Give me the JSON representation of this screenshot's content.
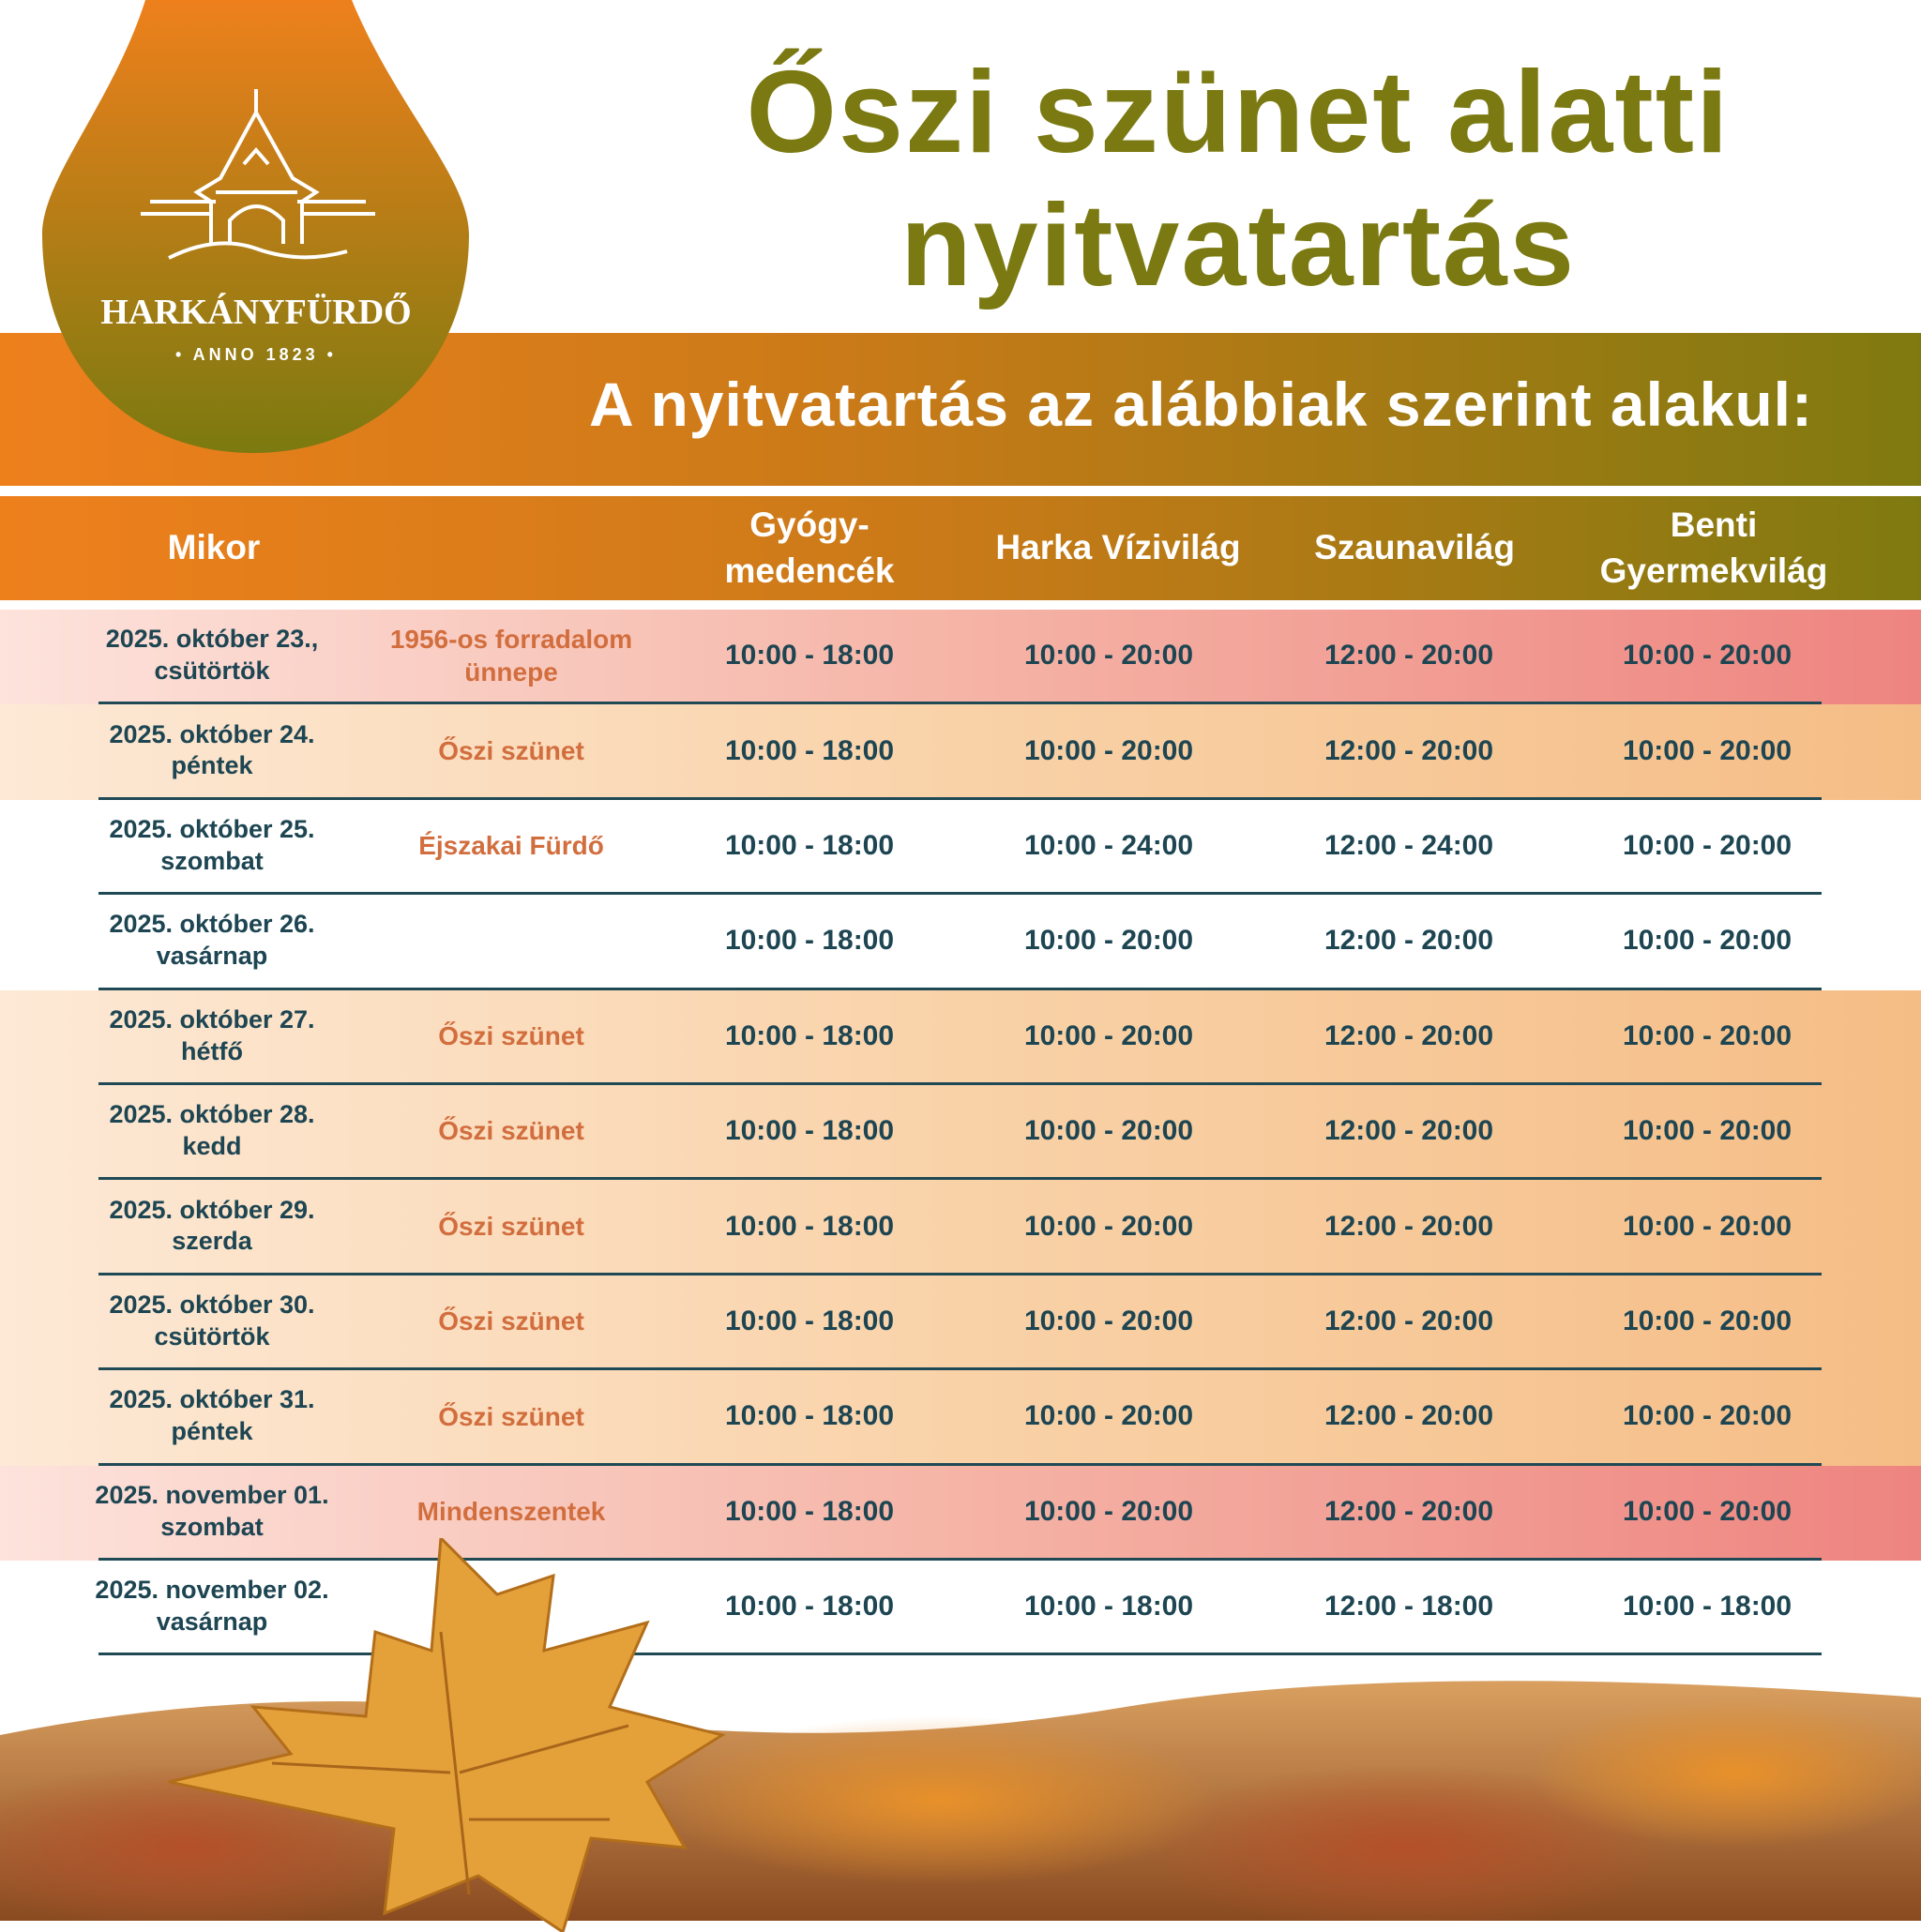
{
  "logo": {
    "brand": "HARKÁNYFÜRDŐ",
    "tagline": "• ANNO 1823 •"
  },
  "title": {
    "line1": "Őszi szünet alatti",
    "line2": "nyitvatartás"
  },
  "subtitle": "A nyitvatartás az alábbiak szerint alakul:",
  "colors": {
    "title": "#7b7a12",
    "band_start": "#ee801c",
    "band_end": "#7f7a10",
    "text": "#1d4552",
    "event": "#d26e3e"
  },
  "table": {
    "headers": [
      "Mikor",
      "",
      "Gyógy-\nmedencék",
      "Harka Vízivilág",
      "Szaunavilág",
      "Benti\nGyermekvilág"
    ],
    "rows": [
      {
        "style": "pink",
        "date": "2025. október 23.,",
        "day": "csütörtök",
        "event": "1956-os forradalom ünnepe",
        "gyogy": "10:00 - 18:00",
        "harka": "10:00 - 20:00",
        "szauna": "12:00 - 20:00",
        "benti": "10:00 - 20:00"
      },
      {
        "style": "peach",
        "date": "2025. október 24.",
        "day": "péntek",
        "event": "Őszi szünet",
        "gyogy": "10:00 - 18:00",
        "harka": "10:00 - 20:00",
        "szauna": "12:00 - 20:00",
        "benti": "10:00 - 20:00"
      },
      {
        "style": "white",
        "date": "2025. október 25.",
        "day": "szombat",
        "event": "Éjszakai Fürdő",
        "gyogy": "10:00 - 18:00",
        "harka": "10:00 - 24:00",
        "szauna": "12:00 - 24:00",
        "benti": "10:00 - 20:00"
      },
      {
        "style": "white",
        "date": "2025. október 26.",
        "day": "vasárnap",
        "event": "",
        "gyogy": "10:00 - 18:00",
        "harka": "10:00 - 20:00",
        "szauna": "12:00 - 20:00",
        "benti": "10:00 - 20:00"
      },
      {
        "style": "peach",
        "date": "2025. október 27.",
        "day": "hétfő",
        "event": "Őszi szünet",
        "gyogy": "10:00 - 18:00",
        "harka": "10:00 - 20:00",
        "szauna": "12:00 - 20:00",
        "benti": "10:00 - 20:00"
      },
      {
        "style": "peach",
        "date": "2025. október 28.",
        "day": "kedd",
        "event": "Őszi szünet",
        "gyogy": "10:00 - 18:00",
        "harka": "10:00 - 20:00",
        "szauna": "12:00 - 20:00",
        "benti": "10:00 - 20:00"
      },
      {
        "style": "peach",
        "date": "2025. október 29.",
        "day": "szerda",
        "event": "Őszi szünet",
        "gyogy": "10:00 - 18:00",
        "harka": "10:00 - 20:00",
        "szauna": "12:00 - 20:00",
        "benti": "10:00 - 20:00"
      },
      {
        "style": "peach",
        "date": "2025. október 30.",
        "day": "csütörtök",
        "event": "Őszi szünet",
        "gyogy": "10:00 - 18:00",
        "harka": "10:00 - 20:00",
        "szauna": "12:00 - 20:00",
        "benti": "10:00 - 20:00"
      },
      {
        "style": "peach",
        "date": "2025. október 31.",
        "day": "péntek",
        "event": "Őszi szünet",
        "gyogy": "10:00 - 18:00",
        "harka": "10:00 - 20:00",
        "szauna": "12:00 - 20:00",
        "benti": "10:00 - 20:00"
      },
      {
        "style": "pink",
        "date": "2025. november 01.",
        "day": "szombat",
        "event": "Mindenszentek",
        "gyogy": "10:00 - 18:00",
        "harka": "10:00 - 20:00",
        "szauna": "12:00 - 20:00",
        "benti": "10:00 - 20:00"
      },
      {
        "style": "white",
        "date": "2025. november 02.",
        "day": "vasárnap",
        "event": "",
        "gyogy": "10:00 - 18:00",
        "harka": "10:00 - 18:00",
        "szauna": "12:00 - 18:00",
        "benti": "10:00 - 18:00"
      }
    ]
  }
}
